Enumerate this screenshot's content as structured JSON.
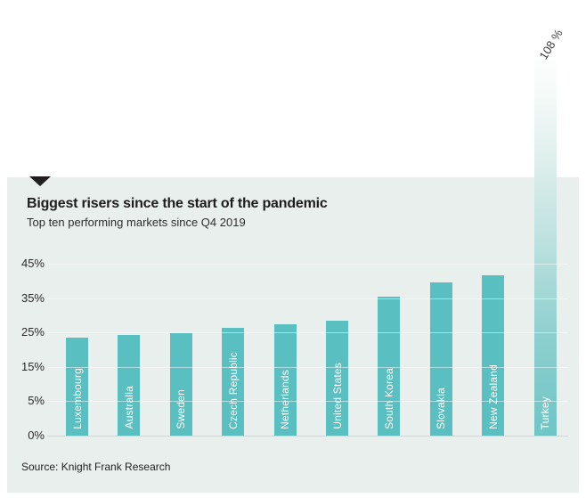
{
  "chart_data": {
    "type": "bar",
    "title": "Biggest risers since the start of the pandemic",
    "subtitle": "Top ten performing markets since Q4 2019",
    "source": "Source: Knight Frank Research",
    "categories": [
      "Luxembourg",
      "Australia",
      "Sweden",
      "Czech Republic",
      "Netherlands",
      "United States",
      "South Korea",
      "Slovakia",
      "New Zealand",
      "Turkey"
    ],
    "values": [
      23.4,
      24.4,
      24.9,
      26.3,
      27.5,
      28.3,
      35.3,
      39.5,
      41.6,
      108
    ],
    "value_suffix": "%",
    "highlight_bar_index": 9,
    "highlight_bar_label": "108 %",
    "ytick_labels_bottom_up": [
      "0%",
      "5%",
      "15%",
      "25%",
      "35%",
      "45%"
    ],
    "xlabel": "",
    "ylabel": "",
    "legend": "none",
    "grid": "horizontal-light-lines",
    "orientation": "vertical-bars-labels-inside-rotated",
    "colors": {
      "bar": "#5abfc0",
      "highlight_bar_bottom": "#6fc5c5",
      "panel_background": "#e9efec",
      "page_background": "#ffffff",
      "title_text": "#1d1d1d",
      "bar_label_text": "#ffffff",
      "baseline_line": "#d0d8d4"
    }
  }
}
